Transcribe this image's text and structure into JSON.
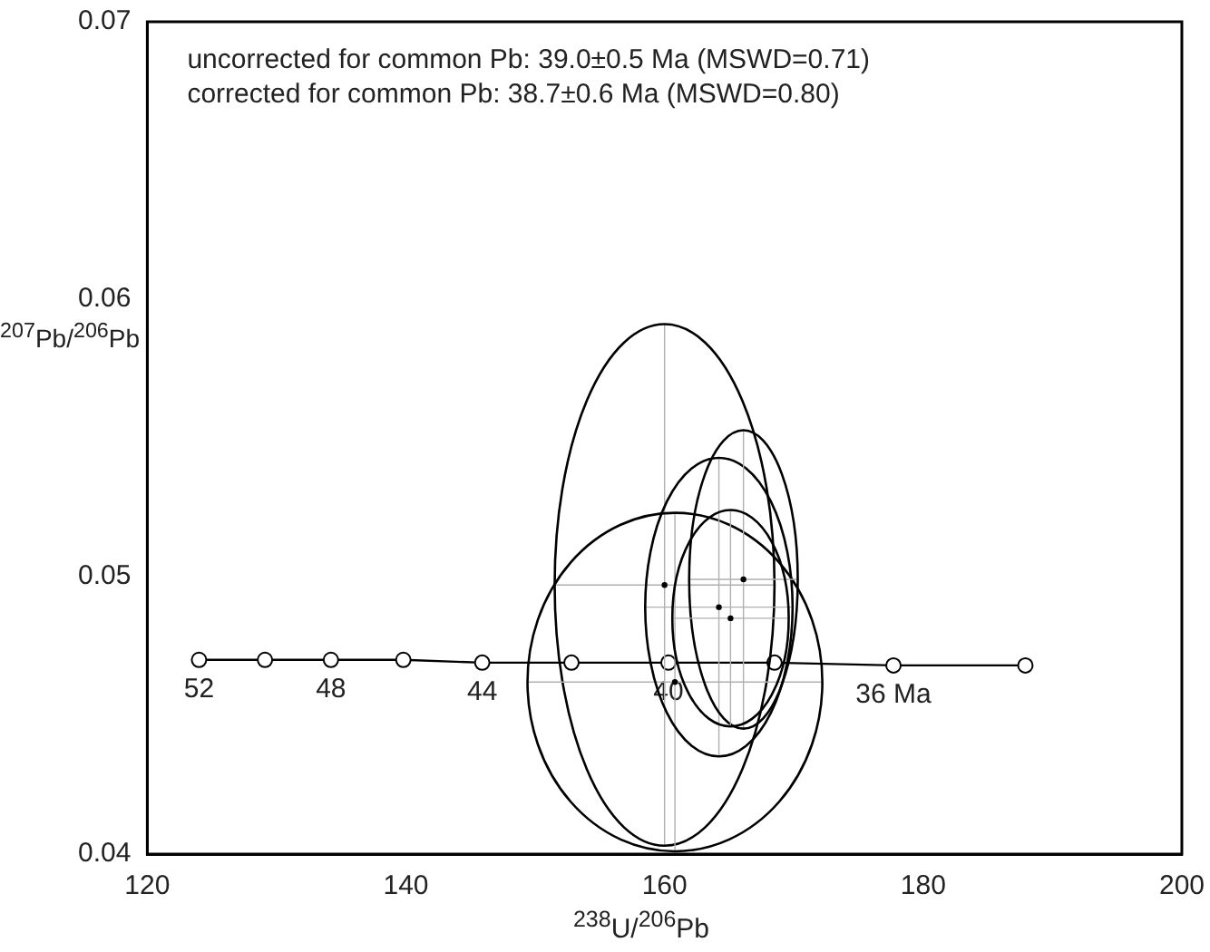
{
  "chart_data": {
    "type": "scatter",
    "xlabel": "$^{238}$U/$^{206}$Pb",
    "ylabel": "$^{207}$Pb/$^{206}$Pb",
    "xlim": [
      120,
      200
    ],
    "ylim": [
      0.04,
      0.07
    ],
    "xticks": [
      120,
      140,
      160,
      180,
      200
    ],
    "yticks": [
      0.04,
      0.05,
      0.06,
      0.07
    ],
    "annotations": [
      "uncorrected for common Pb: 39.0±0.5 Ma (MSWD=0.71)",
      "corrected for common Pb: 38.7±0.6 Ma (MSWD=0.80)",
      {
        "text": "52",
        "x": 124.0,
        "y": 0.047
      },
      {
        "text": "48",
        "x": 134.2,
        "y": 0.047
      },
      {
        "text": "44",
        "x": 145.9,
        "y": 0.0469
      },
      {
        "text": "40",
        "x": 160.3,
        "y": 0.0469
      },
      {
        "text": "36 Ma",
        "x": 177.7,
        "y": 0.0468
      }
    ],
    "series": [
      {
        "type": "line",
        "color": "#000000",
        "marker": "circle",
        "x": [
          124.0,
          129.1,
          134.2,
          139.8,
          145.9,
          152.8,
          160.3,
          168.5,
          177.7,
          187.9
        ],
        "values": [
          0.047,
          0.047,
          0.047,
          0.047,
          0.0469,
          0.0469,
          0.0469,
          0.0469,
          0.0468,
          0.0468
        ]
      },
      {
        "type": "scatter",
        "color": "#000000",
        "marker": "circle",
        "x": [
          160.0,
          160.8,
          164.2,
          166.1,
          165.1
        ],
        "values": [
          0.0497,
          0.0462,
          0.0489,
          0.0499,
          0.0485
        ],
        "xerrors": [
          8.5,
          11.4,
          5.7,
          4.2,
          4.5
        ],
        "errors": [
          0.0094,
          0.0061,
          0.0054,
          0.0054,
          0.0039
        ]
      }
    ]
  }
}
